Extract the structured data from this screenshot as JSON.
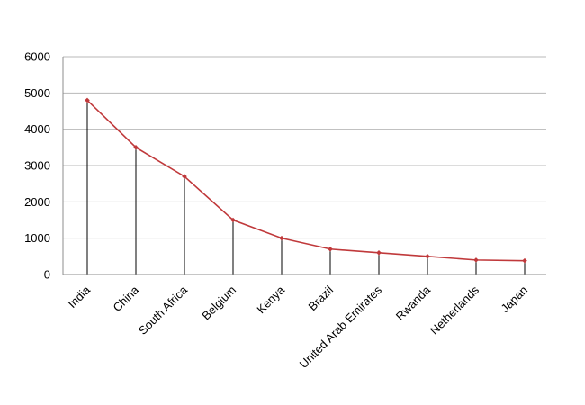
{
  "chart_data": {
    "type": "line",
    "categories": [
      "India",
      "China",
      "South Africa",
      "Belgium",
      "Kenya",
      "Brazil",
      "United Arab Emirates",
      "Rwanda",
      "Netherlands",
      "Japan"
    ],
    "series": [
      {
        "values": [
          4800,
          3500,
          2700,
          1500,
          1000,
          700,
          600,
          500,
          400,
          380
        ]
      }
    ],
    "ylim": [
      0,
      6000
    ],
    "yticks": [
      0,
      1000,
      2000,
      3000,
      4000,
      5000,
      6000
    ],
    "grid": true,
    "drop_lines": true,
    "colors": {
      "line": "#c0393b",
      "marker": "#c0393b",
      "grid": "#b8b8b8",
      "drop": "#000000"
    }
  }
}
